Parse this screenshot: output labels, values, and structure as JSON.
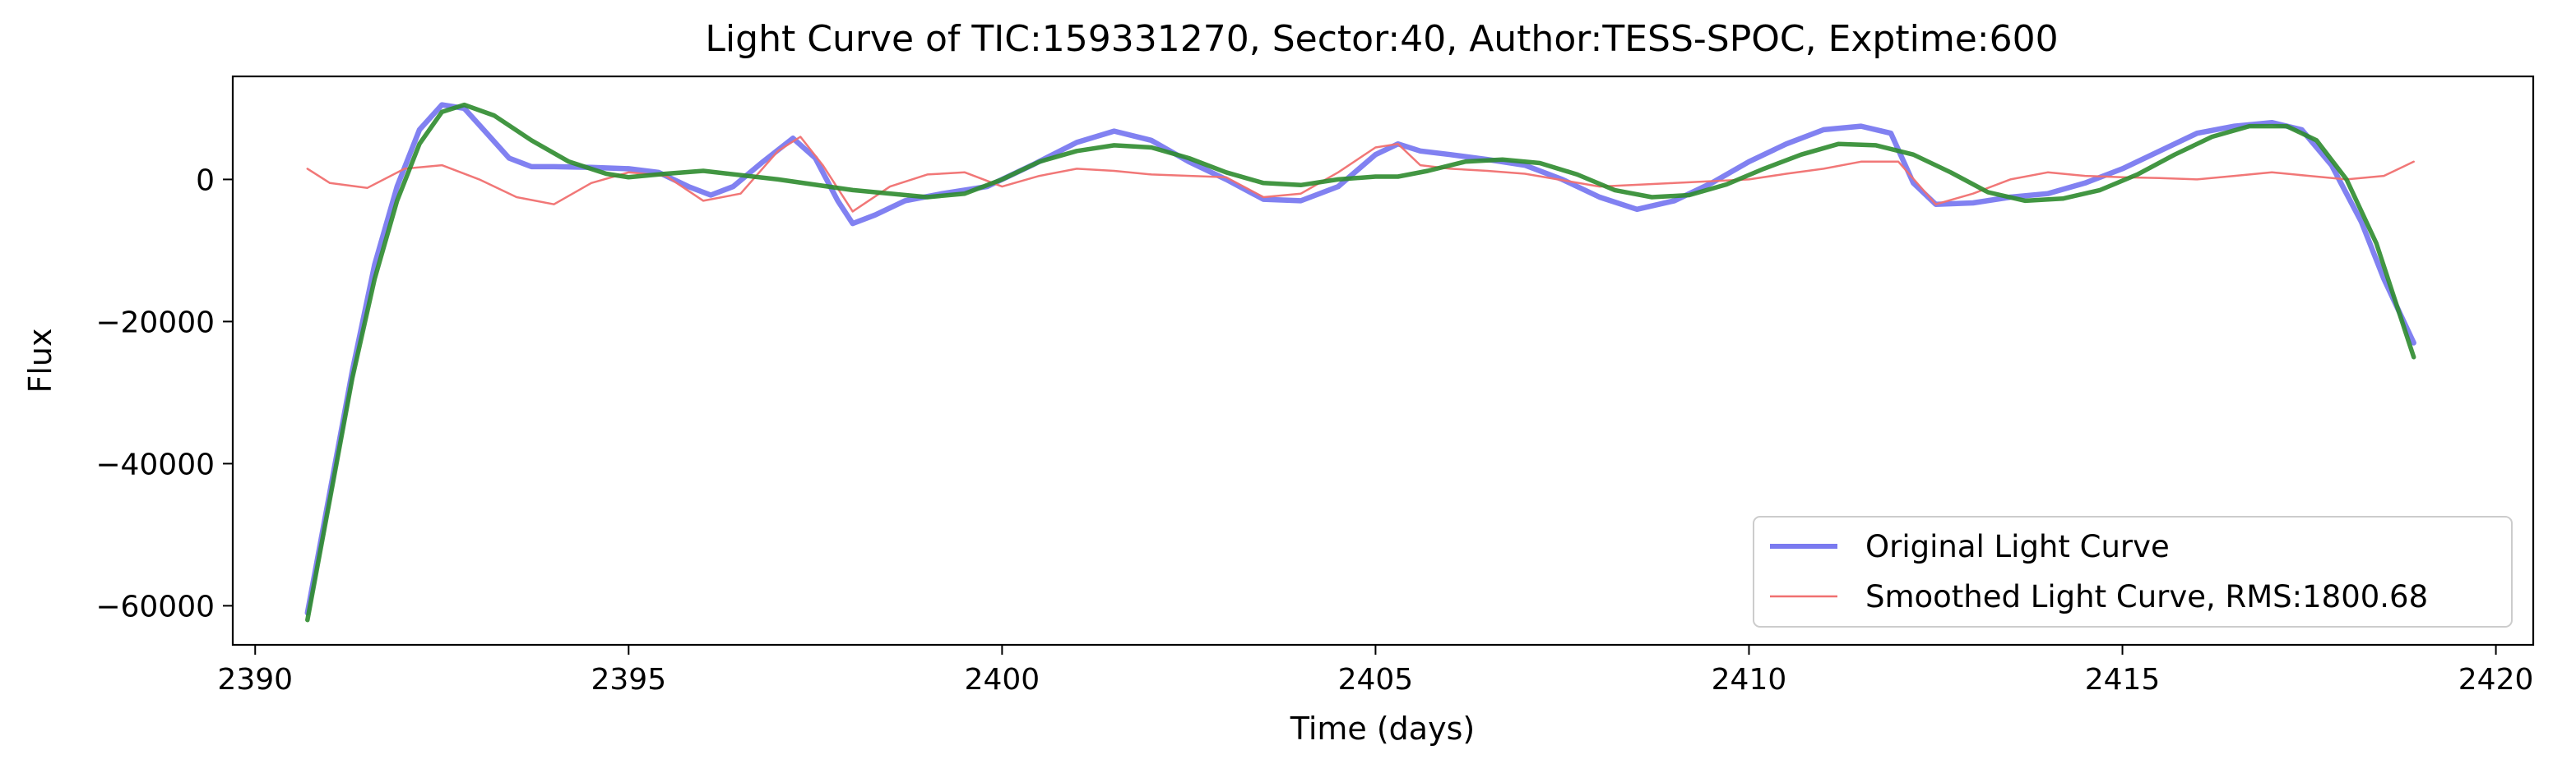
{
  "chart_data": {
    "type": "line",
    "title": "Light Curve of TIC:159331270, Sector:40, Author:TESS-SPOC, Exptime:600",
    "xlabel": "Time (days)",
    "ylabel": "Flux",
    "xlim": [
      2389.7,
      2420.5
    ],
    "ylim": [
      -65500,
      14500
    ],
    "xticks": [
      2390,
      2395,
      2400,
      2405,
      2410,
      2415,
      2420
    ],
    "xtick_labels": [
      "2390",
      "2395",
      "2400",
      "2405",
      "2410",
      "2415",
      "2420"
    ],
    "yticks": [
      0,
      -20000,
      -40000,
      -60000
    ],
    "ytick_labels": [
      "0",
      "−20000",
      "−40000",
      "−60000"
    ],
    "grid": false,
    "legend_position": "lower-right",
    "series": [
      {
        "name": "Original Light Curve",
        "color": "#7a7af0",
        "x": [
          2390.7,
          2391.0,
          2391.3,
          2391.6,
          2391.9,
          2392.2,
          2392.5,
          2392.8,
          2393.1,
          2393.4,
          2393.7,
          2394.0,
          2394.5,
          2395.0,
          2395.4,
          2395.8,
          2396.1,
          2396.4,
          2396.8,
          2397.2,
          2397.5,
          2397.8,
          2398.0,
          2398.3,
          2398.7,
          2399.2,
          2399.8,
          2400.4,
          2401.0,
          2401.5,
          2402.0,
          2402.5,
          2403.0,
          2403.5,
          2404.0,
          2404.5,
          2405.0,
          2405.3,
          2405.6,
          2406.0,
          2406.5,
          2407.0,
          2407.5,
          2408.0,
          2408.5,
          2409.0,
          2409.5,
          2410.0,
          2410.5,
          2411.0,
          2411.5,
          2411.9,
          2412.2,
          2412.5,
          2413.0,
          2413.5,
          2414.0,
          2414.5,
          2415.0,
          2415.5,
          2416.0,
          2416.5,
          2417.0,
          2417.4,
          2417.8,
          2418.2,
          2418.5,
          2418.9
        ],
        "y": [
          -61000,
          -44000,
          -27000,
          -12000,
          -1000,
          7000,
          10500,
          10000,
          6500,
          3000,
          1800,
          1800,
          1700,
          1500,
          1000,
          -1000,
          -2200,
          -1000,
          2500,
          5800,
          3000,
          -3000,
          -6200,
          -5000,
          -3000,
          -2000,
          -1000,
          2000,
          5200,
          6800,
          5500,
          2500,
          0,
          -2800,
          -3000,
          -1000,
          3500,
          5000,
          4000,
          3500,
          2800,
          2000,
          0,
          -2500,
          -4200,
          -3000,
          -500,
          2500,
          5000,
          7000,
          7500,
          6500,
          -500,
          -3500,
          -3300,
          -2500,
          -2000,
          -500,
          1500,
          4000,
          6500,
          7500,
          8000,
          7000,
          2000,
          -6000,
          -14000,
          -23000
        ]
      },
      {
        "name": "Smoothed Light Curve, RMS:1800.68",
        "color": "#f07070",
        "x": [
          2390.7,
          2391.0,
          2391.5,
          2392.0,
          2392.5,
          2393.0,
          2393.5,
          2394.0,
          2394.5,
          2395.0,
          2395.5,
          2396.0,
          2396.5,
          2397.0,
          2397.3,
          2397.6,
          2398.0,
          2398.5,
          2399.0,
          2399.5,
          2400.0,
          2400.5,
          2401.0,
          2401.5,
          2402.0,
          2403.0,
          2403.5,
          2404.0,
          2404.5,
          2405.0,
          2405.3,
          2405.6,
          2406.0,
          2406.5,
          2407.0,
          2408.0,
          2409.0,
          2410.0,
          2410.5,
          2411.0,
          2411.5,
          2412.0,
          2412.5,
          2413.0,
          2413.5,
          2414.0,
          2414.5,
          2415.0,
          2415.5,
          2416.0,
          2416.5,
          2417.0,
          2417.5,
          2418.0,
          2418.5,
          2418.9
        ],
        "y": [
          1500,
          -500,
          -1200,
          1500,
          2000,
          0,
          -2500,
          -3500,
          -500,
          1000,
          500,
          -3000,
          -2000,
          4000,
          6000,
          2000,
          -4500,
          -1000,
          700,
          1000,
          -1000,
          500,
          1500,
          1200,
          700,
          300,
          -2500,
          -2000,
          1000,
          4500,
          5000,
          2000,
          1500,
          1200,
          800,
          -1000,
          -500,
          0,
          800,
          1500,
          2500,
          2500,
          -3500,
          -2000,
          0,
          1000,
          500,
          300,
          200,
          0,
          500,
          1000,
          500,
          0,
          500,
          2500
        ]
      },
      {
        "name": "",
        "color": "#2e8b2e",
        "x": [
          2390.7,
          2391.0,
          2391.3,
          2391.6,
          2391.9,
          2392.2,
          2392.5,
          2392.8,
          2393.2,
          2393.7,
          2394.2,
          2394.7,
          2395.0,
          2395.5,
          2396.0,
          2397.0,
          2398.0,
          2399.0,
          2399.5,
          2400.0,
          2400.5,
          2401.0,
          2401.5,
          2402.0,
          2402.5,
          2403.0,
          2403.5,
          2404.0,
          2404.5,
          2405.0,
          2405.3,
          2405.7,
          2406.2,
          2406.7,
          2407.2,
          2407.7,
          2408.2,
          2408.7,
          2409.2,
          2409.7,
          2410.2,
          2410.7,
          2411.2,
          2411.7,
          2412.2,
          2412.7,
          2413.2,
          2413.7,
          2414.2,
          2414.7,
          2415.2,
          2415.7,
          2416.2,
          2416.7,
          2417.2,
          2417.6,
          2418.0,
          2418.4,
          2418.9
        ],
        "y": [
          -62000,
          -45000,
          -28000,
          -14000,
          -3000,
          5000,
          9500,
          10500,
          9000,
          5500,
          2500,
          800,
          300,
          800,
          1200,
          0,
          -1500,
          -2500,
          -2000,
          0,
          2500,
          4000,
          4800,
          4500,
          3000,
          1000,
          -500,
          -800,
          0,
          400,
          400,
          1200,
          2500,
          2800,
          2300,
          700,
          -1500,
          -2500,
          -2200,
          -700,
          1500,
          3500,
          5000,
          4800,
          3500,
          1000,
          -1800,
          -3000,
          -2700,
          -1500,
          700,
          3500,
          6000,
          7500,
          7500,
          5500,
          0,
          -9000,
          -25000
        ]
      }
    ]
  }
}
